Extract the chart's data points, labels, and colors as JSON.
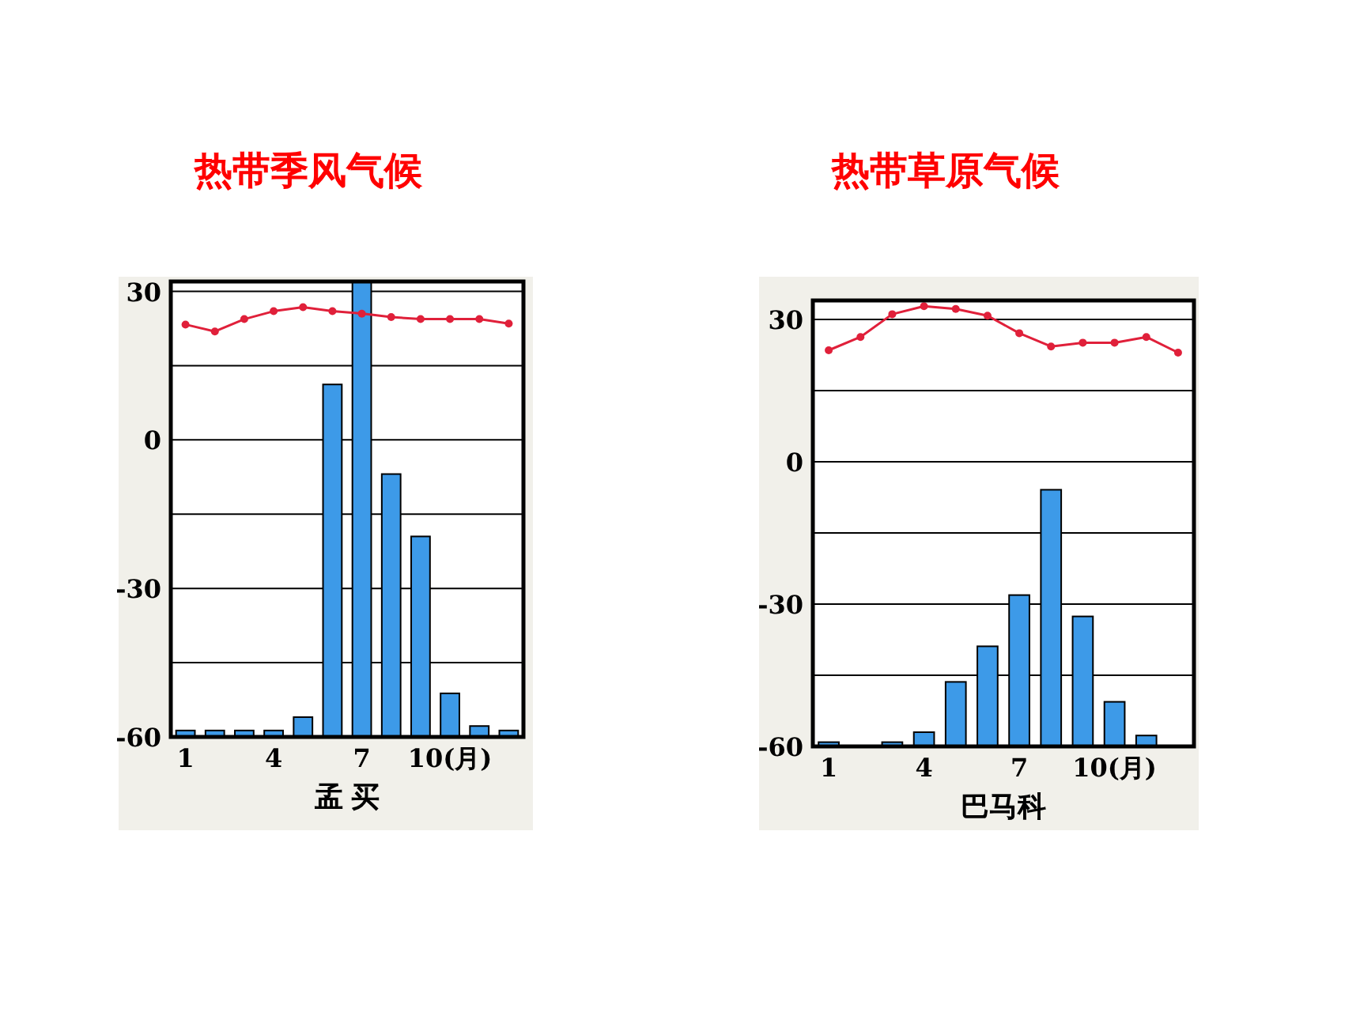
{
  "chart_data": [
    {
      "type": "bar",
      "title": "热带季风气候",
      "xlabel": "孟 买",
      "categories": [
        "1",
        null,
        null,
        "4",
        null,
        null,
        "7",
        null,
        null,
        "10(月)",
        null,
        null
      ],
      "ylim": [
        -60,
        32
      ],
      "yticks": [
        30,
        {
          "value": 15,
          "label": null
        },
        0,
        {
          "value": -15,
          "label": null
        },
        -30,
        {
          "value": -45,
          "label": null
        },
        -60
      ],
      "grid": "y",
      "series": [
        {
          "type": "bar",
          "color": "#3d9ae8",
          "base": [
            -60,
            -60,
            -60,
            -60,
            -60,
            -60,
            -60,
            -60,
            -60,
            -60,
            -60,
            -60
          ],
          "values": [
            1.3,
            1.3,
            1.3,
            1.3,
            4,
            71.2,
            91.9,
            53.1,
            40.5,
            8.8,
            2.2,
            1.3
          ]
        },
        {
          "type": "line",
          "color": "#e0203a",
          "marker": "circle",
          "values": [
            23.3,
            21.9,
            24.4,
            26,
            26.8,
            26,
            25.5,
            24.8,
            24.4,
            24.4,
            24.4,
            23.5
          ]
        }
      ]
    },
    {
      "type": "bar",
      "title": "热带草原气候",
      "xlabel": "巴马科",
      "categories": [
        "1",
        null,
        null,
        "4",
        null,
        null,
        "7",
        null,
        null,
        "10(月)",
        null,
        null
      ],
      "ylim": [
        -60,
        34
      ],
      "yticks": [
        30,
        {
          "value": 15,
          "label": null
        },
        0,
        {
          "value": -15,
          "label": null
        },
        -30,
        {
          "value": -45,
          "label": null
        },
        -60
      ],
      "grid": "y",
      "series": [
        {
          "type": "bar",
          "color": "#3d9ae8",
          "base": [
            -60,
            null,
            -60,
            -60,
            -60,
            -60,
            -60,
            -60,
            -60,
            -60,
            -60,
            null
          ],
          "values": [
            0.9,
            null,
            0.9,
            3,
            13.6,
            21.1,
            31.9,
            54.1,
            27.4,
            9.4,
            2.3,
            null
          ]
        },
        {
          "type": "line",
          "color": "#e0203a",
          "marker": "circle",
          "values": [
            23.5,
            26.3,
            31.1,
            32.8,
            32.2,
            30.8,
            27.1,
            24.3,
            25.1,
            25.1,
            26.3,
            23
          ]
        }
      ]
    }
  ]
}
